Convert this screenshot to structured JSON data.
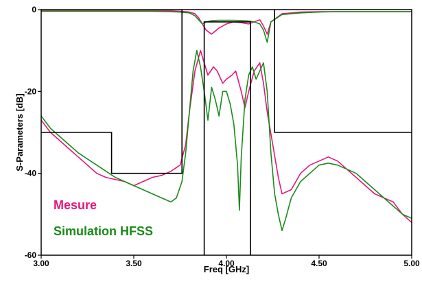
{
  "chart_data": {
    "type": "line",
    "xlabel": "Freq [GHz]",
    "ylabel": "S-Parameters [dB]",
    "xlim": [
      3.0,
      5.0
    ],
    "ylim": [
      -60,
      0
    ],
    "x_ticks": [
      {
        "value": 3.0,
        "label": "3.00"
      },
      {
        "value": 3.5,
        "label": "3.50"
      },
      {
        "value": 4.0,
        "label": "4.00"
      },
      {
        "value": 4.5,
        "label": "4.50"
      },
      {
        "value": 5.0,
        "label": "5.00"
      }
    ],
    "y_ticks": [
      {
        "value": 0,
        "label": "0"
      },
      {
        "value": -20,
        "label": "-20"
      },
      {
        "value": -40,
        "label": "-40"
      },
      {
        "value": -60,
        "label": "-60"
      }
    ],
    "grid": false,
    "legend": {
      "placement": "bottom-left",
      "entries": [
        {
          "label": "Mesure",
          "color": "#e8157a"
        },
        {
          "label": "Simulation HFSS",
          "color": "#1a8a1a"
        }
      ]
    },
    "template_color": "#000000",
    "series": [
      {
        "color": "#e8157a",
        "x": [
          3.0,
          3.1,
          3.2,
          3.3,
          3.4,
          3.5,
          3.6,
          3.7,
          3.75,
          3.8,
          3.83,
          3.85,
          3.87,
          3.89,
          3.92,
          3.96,
          4.0,
          4.04,
          4.08,
          4.12,
          4.15,
          4.18,
          4.2,
          4.22,
          4.24,
          4.3,
          4.4,
          4.5,
          4.6,
          4.7,
          4.8,
          4.9,
          5.0
        ],
        "y": [
          -0.3,
          -0.3,
          -0.3,
          -0.3,
          -0.3,
          -0.3,
          -0.3,
          -0.3,
          -0.4,
          -0.6,
          -1.0,
          -2.0,
          -3.5,
          -5.0,
          -6.0,
          -4.5,
          -3.5,
          -3.0,
          -3.2,
          -3.5,
          -3.0,
          -2.5,
          -4.0,
          -6.0,
          -3.0,
          -1.0,
          -0.6,
          -0.5,
          -0.5,
          -0.5,
          -0.5,
          -0.5,
          -0.5
        ]
      },
      {
        "color": "#e8157a",
        "x": [
          3.0,
          3.05,
          3.1,
          3.15,
          3.2,
          3.25,
          3.3,
          3.35,
          3.4,
          3.45,
          3.5,
          3.55,
          3.6,
          3.65,
          3.7,
          3.75,
          3.78,
          3.8,
          3.83,
          3.86,
          3.88,
          3.9,
          3.93,
          3.95,
          3.98,
          4.0,
          4.03,
          4.05,
          4.08,
          4.1,
          4.12,
          4.15,
          4.18,
          4.2,
          4.22,
          4.25,
          4.28,
          4.3,
          4.35,
          4.4,
          4.45,
          4.5,
          4.55,
          4.6,
          4.65,
          4.7,
          4.75,
          4.8,
          4.85,
          4.9,
          4.95,
          5.0
        ],
        "y": [
          -27,
          -30,
          -32,
          -34,
          -36,
          -38,
          -40,
          -41,
          -41.5,
          -42,
          -43,
          -42,
          -41,
          -40.5,
          -39.5,
          -38,
          -33,
          -25,
          -15,
          -10,
          -13,
          -16,
          -14,
          -15,
          -18,
          -17,
          -16,
          -15,
          -20,
          -24,
          -20,
          -15,
          -13,
          -18,
          -25,
          -33,
          -41,
          -45,
          -44,
          -40,
          -38,
          -37,
          -36,
          -37,
          -39,
          -41,
          -43,
          -45,
          -46,
          -47,
          -50,
          -52
        ]
      },
      {
        "color": "#1a8a1a",
        "x": [
          3.0,
          3.1,
          3.2,
          3.3,
          3.4,
          3.5,
          3.6,
          3.7,
          3.75,
          3.8,
          3.83,
          3.85,
          3.87,
          3.89,
          3.92,
          3.96,
          4.0,
          4.04,
          4.08,
          4.12,
          4.15,
          4.18,
          4.2,
          4.22,
          4.24,
          4.3,
          4.4,
          4.5,
          4.6,
          4.7,
          4.8,
          4.9,
          5.0
        ],
        "y": [
          -0.4,
          -0.4,
          -0.4,
          -0.4,
          -0.4,
          -0.4,
          -0.4,
          -0.5,
          -0.6,
          -0.8,
          -1.5,
          -2.5,
          -3.5,
          -3.0,
          -2.7,
          -2.6,
          -2.6,
          -2.6,
          -2.7,
          -2.8,
          -3.0,
          -3.5,
          -5.0,
          -8.0,
          -3.0,
          -1.2,
          -0.8,
          -0.6,
          -0.5,
          -0.5,
          -0.5,
          -0.5,
          -0.5
        ]
      },
      {
        "color": "#1a8a1a",
        "x": [
          3.0,
          3.05,
          3.1,
          3.15,
          3.2,
          3.3,
          3.4,
          3.5,
          3.6,
          3.65,
          3.7,
          3.73,
          3.76,
          3.78,
          3.8,
          3.82,
          3.84,
          3.86,
          3.88,
          3.9,
          3.92,
          3.94,
          3.96,
          3.98,
          4.0,
          4.02,
          4.04,
          4.06,
          4.07,
          4.08,
          4.1,
          4.12,
          4.14,
          4.16,
          4.18,
          4.2,
          4.22,
          4.24,
          4.26,
          4.28,
          4.3,
          4.32,
          4.35,
          4.4,
          4.45,
          4.5,
          4.55,
          4.6,
          4.65,
          4.7,
          4.75,
          4.8,
          4.85,
          4.9,
          4.95,
          5.0
        ],
        "y": [
          -26,
          -29,
          -31,
          -33,
          -35,
          -38,
          -41,
          -43,
          -45,
          -46,
          -47,
          -46,
          -42,
          -35,
          -25,
          -15,
          -10,
          -14,
          -20,
          -27,
          -19,
          -22,
          -26,
          -20,
          -20,
          -23,
          -28,
          -38,
          -49,
          -36,
          -22,
          -16,
          -14,
          -17,
          -15,
          -13,
          -20,
          -35,
          -45,
          -50,
          -54,
          -51,
          -46,
          -42,
          -40,
          -38,
          -37.5,
          -38,
          -39,
          -40,
          -42,
          -44,
          -46,
          -48,
          -50,
          -51
        ]
      }
    ],
    "template": [
      {
        "x": [
          3.0,
          3.38,
          3.38,
          3.76,
          3.76
        ],
        "y": [
          -30,
          -30,
          -40,
          -40,
          0
        ]
      },
      {
        "x": [
          3.88,
          3.88,
          4.13,
          4.13
        ],
        "y": [
          -60,
          -3,
          -3,
          -60
        ]
      },
      {
        "x": [
          4.26,
          4.26,
          5.0
        ],
        "y": [
          0,
          -30,
          -30
        ]
      }
    ]
  }
}
